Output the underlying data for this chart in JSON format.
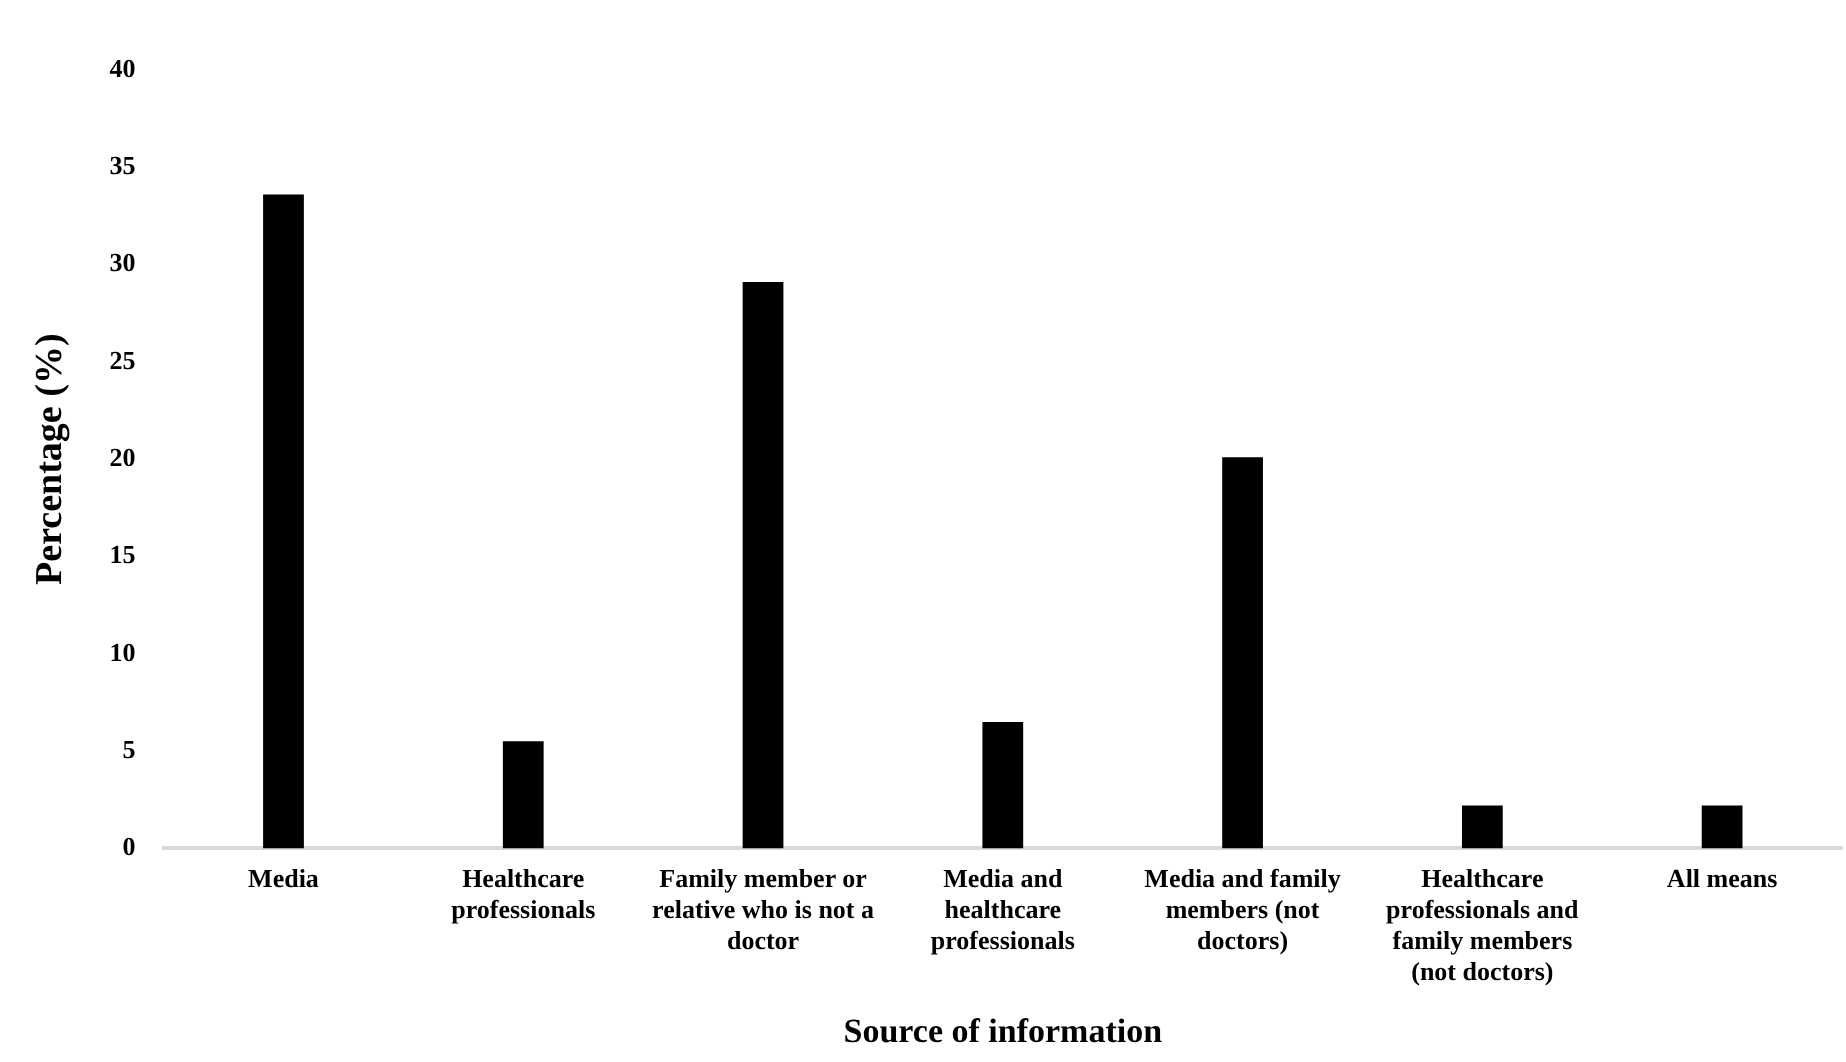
{
  "chart_data": {
    "type": "bar",
    "xlabel": "Source of information",
    "ylabel": "Percentage (%)",
    "categories": [
      "Media",
      "Healthcare professionals",
      "Family member or relative who is not a doctor",
      "Media and healthcare professionals",
      "Media and family members (not doctors)",
      "Healthcare professionals and family members (not doctors)",
      "All means"
    ],
    "values": [
      33.6,
      5.5,
      29.1,
      6.5,
      20.1,
      2.2,
      2.2
    ],
    "color": "#000000",
    "ylim": [
      0,
      40
    ],
    "yticks": [
      0,
      5,
      10,
      15,
      20,
      25,
      30,
      35,
      40
    ],
    "grid": false,
    "legend": false
  }
}
